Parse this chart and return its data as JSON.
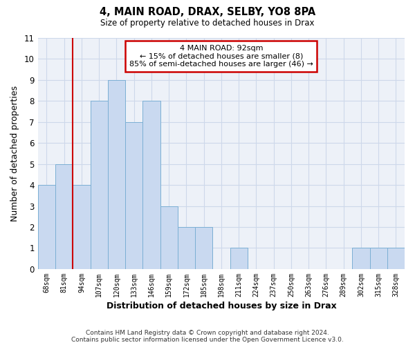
{
  "title": "4, MAIN ROAD, DRAX, SELBY, YO8 8PA",
  "subtitle": "Size of property relative to detached houses in Drax",
  "xlabel": "Distribution of detached houses by size in Drax",
  "ylabel": "Number of detached properties",
  "bin_labels": [
    "68sqm",
    "81sqm",
    "94sqm",
    "107sqm",
    "120sqm",
    "133sqm",
    "146sqm",
    "159sqm",
    "172sqm",
    "185sqm",
    "198sqm",
    "211sqm",
    "224sqm",
    "237sqm",
    "250sqm",
    "263sqm",
    "276sqm",
    "289sqm",
    "302sqm",
    "315sqm",
    "328sqm"
  ],
  "bar_values": [
    4,
    5,
    4,
    8,
    9,
    7,
    8,
    3,
    2,
    2,
    0,
    1,
    0,
    0,
    0,
    0,
    0,
    0,
    1,
    1,
    1
  ],
  "bar_color": "#c9d9f0",
  "bar_edgecolor": "#7bafd4",
  "vline_color": "#cc0000",
  "ylim": [
    0,
    11
  ],
  "yticks": [
    0,
    1,
    2,
    3,
    4,
    5,
    6,
    7,
    8,
    9,
    10,
    11
  ],
  "annotation_title": "4 MAIN ROAD: 92sqm",
  "annotation_line1": "← 15% of detached houses are smaller (8)",
  "annotation_line2": "85% of semi-detached houses are larger (46) →",
  "annotation_box_color": "#ffffff",
  "annotation_box_edgecolor": "#cc0000",
  "footer_line1": "Contains HM Land Registry data © Crown copyright and database right 2024.",
  "footer_line2": "Contains public sector information licensed under the Open Government Licence v3.0.",
  "grid_color": "#cdd8ea",
  "plot_bg_color": "#edf1f8",
  "fig_bg_color": "#ffffff"
}
